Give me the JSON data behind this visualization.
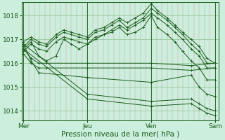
{
  "xlabel": "Pression niveau de la mer( hPa )",
  "bg_color": "#cceedd",
  "line_color": "#1a5c1a",
  "yticks": [
    1014,
    1015,
    1016,
    1017,
    1018
  ],
  "xtick_labels": [
    "Mer",
    "Jeu",
    "Ven",
    "Sam"
  ],
  "xtick_positions": [
    0,
    0.333,
    0.667,
    1.0
  ],
  "xlim": [
    -0.01,
    1.02
  ],
  "ylim": [
    1013.6,
    1018.55
  ],
  "series": [
    {
      "x": [
        0.0,
        0.04,
        0.08,
        0.12,
        0.17,
        0.21,
        0.25,
        0.29,
        0.333,
        0.375,
        0.42,
        0.46,
        0.5,
        0.54,
        0.583,
        0.625,
        0.667,
        0.7,
        0.75,
        0.79,
        0.83,
        0.875,
        0.917,
        0.958,
        1.0
      ],
      "y": [
        1016.7,
        1017.0,
        1016.8,
        1016.7,
        1017.1,
        1017.3,
        1017.2,
        1017.1,
        1017.0,
        1017.3,
        1017.4,
        1017.6,
        1017.8,
        1017.5,
        1017.7,
        1017.9,
        1018.3,
        1018.1,
        1017.8,
        1017.5,
        1017.2,
        1016.8,
        1016.5,
        1016.0,
        1016.0
      ]
    },
    {
      "x": [
        0.0,
        0.04,
        0.08,
        0.12,
        0.17,
        0.21,
        0.25,
        0.29,
        0.333,
        0.375,
        0.42,
        0.46,
        0.5,
        0.54,
        0.583,
        0.625,
        0.667,
        0.7,
        0.75,
        0.79,
        0.83,
        0.875,
        0.917,
        0.958,
        1.0
      ],
      "y": [
        1016.9,
        1017.1,
        1016.9,
        1016.8,
        1017.2,
        1017.4,
        1017.3,
        1017.2,
        1017.1,
        1017.4,
        1017.5,
        1017.7,
        1017.9,
        1017.7,
        1017.9,
        1018.1,
        1018.5,
        1018.2,
        1017.9,
        1017.6,
        1017.3,
        1017.0,
        1016.7,
        1016.2,
        1016.0
      ]
    },
    {
      "x": [
        0.0,
        0.04,
        0.08,
        0.12,
        0.17,
        0.21,
        0.25,
        0.29,
        0.333,
        0.375,
        0.42,
        0.46,
        0.5,
        0.54,
        0.583,
        0.625,
        0.667,
        0.7,
        0.75,
        0.79,
        0.83,
        0.875,
        0.917,
        0.958,
        1.0
      ],
      "y": [
        1016.5,
        1016.8,
        1016.6,
        1016.5,
        1016.9,
        1017.1,
        1017.0,
        1016.9,
        1016.8,
        1017.1,
        1017.2,
        1017.4,
        1017.6,
        1017.4,
        1017.6,
        1017.8,
        1018.1,
        1017.9,
        1017.6,
        1017.3,
        1017.0,
        1016.6,
        1016.3,
        1015.8,
        1015.8
      ]
    },
    {
      "x": [
        0.0,
        0.04,
        0.08,
        0.12,
        0.17,
        0.21,
        0.25,
        0.29,
        0.333,
        0.375,
        0.42,
        0.46,
        0.5,
        0.54,
        0.583,
        0.625,
        0.667,
        0.7,
        0.75,
        0.79,
        0.83,
        0.875,
        0.917,
        0.958,
        1.0
      ],
      "y": [
        1016.6,
        1016.9,
        1016.3,
        1016.1,
        1016.3,
        1017.0,
        1016.8,
        1016.6,
        1016.8,
        1017.0,
        1017.2,
        1017.3,
        1017.5,
        1017.2,
        1017.3,
        1017.5,
        1018.0,
        1017.5,
        1017.2,
        1016.9,
        1016.5,
        1016.1,
        1015.8,
        1015.3,
        1015.3
      ]
    },
    {
      "x": [
        0.0,
        0.04,
        0.08,
        0.12,
        0.333,
        0.667,
        0.875,
        1.0
      ],
      "y": [
        1016.6,
        1016.2,
        1016.0,
        1016.0,
        1016.0,
        1016.0,
        1015.9,
        1016.0
      ]
    },
    {
      "x": [
        0.0,
        0.04,
        0.08,
        0.12,
        0.333,
        0.667,
        0.875,
        1.0
      ],
      "y": [
        1016.4,
        1016.0,
        1015.8,
        1015.8,
        1015.8,
        1015.8,
        1015.7,
        1015.8
      ]
    },
    {
      "x": [
        0.0,
        0.04,
        0.08,
        0.333,
        0.667,
        0.875,
        0.917,
        0.958,
        1.0
      ],
      "y": [
        1016.8,
        1016.1,
        1015.6,
        1015.4,
        1015.2,
        1015.5,
        1015.0,
        1014.7,
        1014.6
      ]
    },
    {
      "x": [
        0.0,
        0.333,
        0.667,
        0.875,
        0.917,
        0.958,
        1.0
      ],
      "y": [
        1016.6,
        1014.5,
        1014.2,
        1014.3,
        1014.1,
        1013.9,
        1013.8
      ]
    },
    {
      "x": [
        0.0,
        0.333,
        0.667,
        0.875,
        0.917,
        0.958,
        1.0
      ],
      "y": [
        1016.8,
        1014.7,
        1014.4,
        1014.5,
        1014.3,
        1014.1,
        1014.0
      ]
    }
  ],
  "n_vgrid": 36,
  "xlabel_fontsize": 7.5,
  "tick_fontsize": 6.5
}
